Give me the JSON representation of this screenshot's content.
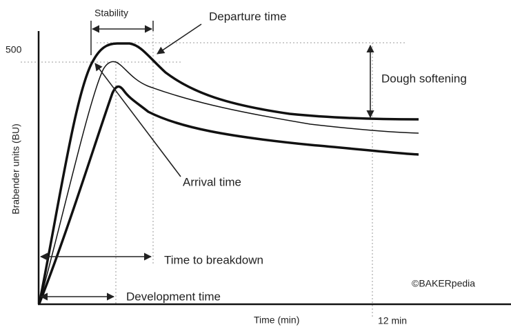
{
  "diagram": {
    "y_axis_label": "Brabender units (BU)",
    "x_axis_label": "Time (min)",
    "y_marker": "500",
    "x_marker": "12 min",
    "labels": {
      "stability": "Stability",
      "departure_time": "Departure time",
      "dough_softening": "Dough softening",
      "arrival_time": "Arrival time",
      "time_to_breakdown": "Time to breakdown",
      "development_time": "Development time"
    },
    "credit": "©BAKERpedia"
  }
}
